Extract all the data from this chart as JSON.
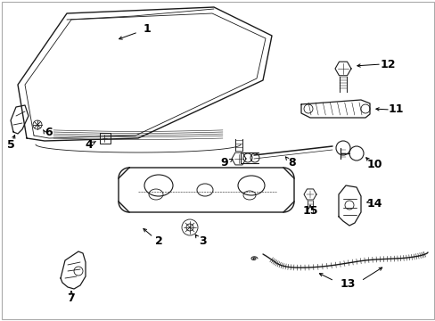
{
  "bg_color": "#ffffff",
  "line_color": "#1a1a1a",
  "fig_width": 4.89,
  "fig_height": 3.6,
  "dpi": 100,
  "label_fs": 9.0,
  "label_fs_sm": 8.5
}
